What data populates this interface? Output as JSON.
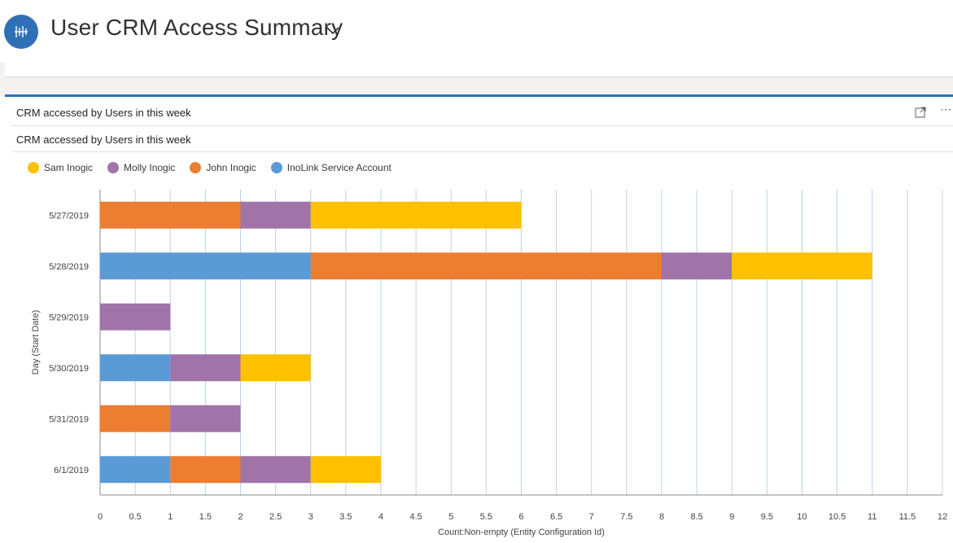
{
  "header": {
    "title": "User CRM Access Summary",
    "app_icon": "chart-dashboard-icon",
    "accent": "#2f6fb6"
  },
  "panel": {
    "title": "CRM accessed by Users in this week",
    "chart_title": "CRM accessed by Users in this week",
    "expand_icon": "expand-icon",
    "more_icon": "more-options-icon"
  },
  "chart_data": {
    "type": "bar",
    "orientation": "horizontal",
    "stacked": true,
    "title": "CRM accessed by Users in this week",
    "xlabel": "Count:Non-empty (Entity Configuration Id)",
    "ylabel": "Day (Start Date)",
    "xlim": [
      0,
      12
    ],
    "xticks": [
      "0",
      "0.5",
      "1",
      "1.5",
      "2",
      "2.5",
      "3",
      "3.5",
      "4",
      "4.5",
      "5",
      "5.5",
      "6",
      "6.5",
      "7",
      "7.5",
      "8",
      "8.5",
      "9",
      "9.5",
      "10",
      "10.5",
      "11",
      "11.5",
      "12"
    ],
    "grid": true,
    "legend_position": "top-left",
    "categories": [
      "5/27/2019",
      "5/28/2019",
      "5/29/2019",
      "5/30/2019",
      "5/31/2019",
      "6/1/2019"
    ],
    "series": [
      {
        "name": "InoLink Service Account",
        "color": "#5b9bd5",
        "values": [
          0,
          3,
          0,
          1,
          0,
          1
        ]
      },
      {
        "name": "John Inogic",
        "color": "#ed7d31",
        "values": [
          2,
          5,
          0,
          0,
          1,
          1
        ]
      },
      {
        "name": "Molly Inogic",
        "color": "#a074a8",
        "values": [
          1,
          1,
          1,
          1,
          1,
          1
        ]
      },
      {
        "name": "Sam Inogic",
        "color": "#ffc000",
        "values": [
          3,
          2,
          0,
          1,
          0,
          1
        ]
      }
    ],
    "legend_order": [
      "Sam Inogic",
      "Molly Inogic",
      "John Inogic",
      "InoLink Service Account"
    ]
  }
}
